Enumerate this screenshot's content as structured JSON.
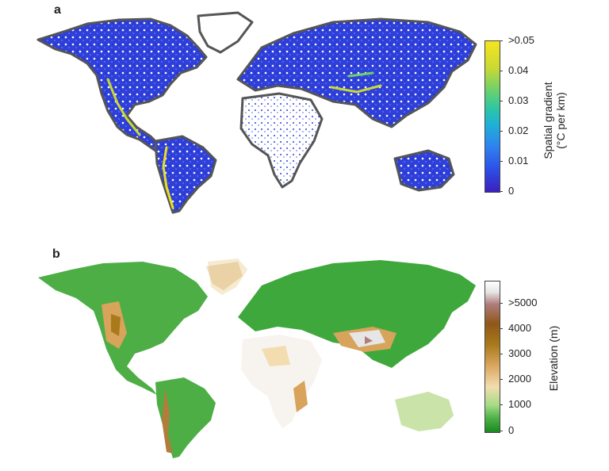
{
  "panel_a": {
    "letter": "a",
    "colorbar": {
      "label_line1": "Spatial gradient",
      "label_line2": "(°C per km)",
      "ticks": [
        ">0.05",
        "0.04",
        "0.03",
        "0.02",
        "0.01",
        "0"
      ],
      "colors": [
        "#3b1fbf",
        "#2d4fe6",
        "#2e82f0",
        "#1fb1d6",
        "#6fd16a",
        "#f6e51f"
      ]
    }
  },
  "panel_b": {
    "letter": "b",
    "colorbar": {
      "label": "Elevation (m)",
      "ticks": [
        ">5000",
        "4000",
        "3000",
        "2000",
        "1000",
        "0"
      ],
      "colors": [
        "#188a1f",
        "#a6dc86",
        "#f3ddb0",
        "#a97a1c",
        "#8f5717",
        "#ffffff"
      ]
    }
  }
}
